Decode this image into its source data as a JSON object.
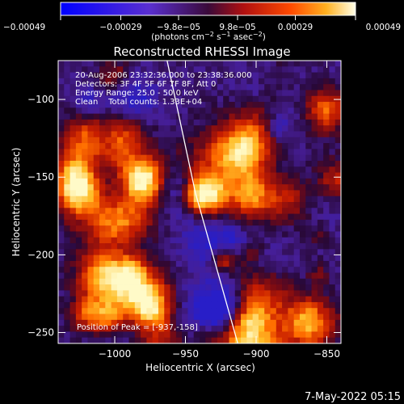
{
  "chart_data": {
    "type": "heatmap",
    "title": "Reconstructed RHESSI Image",
    "xlabel": "Heliocentric X (arcsec)",
    "ylabel": "Heliocentric Y (arcsec)",
    "xlim": [
      -1040,
      -840
    ],
    "ylim": [
      -257,
      -75
    ],
    "x_ticks": [
      -1000,
      -950,
      -900,
      -850
    ],
    "x_tick_labels": [
      "−1000",
      "−950",
      "−900",
      "−850"
    ],
    "y_ticks": [
      -100,
      -150,
      -200,
      -250
    ],
    "y_tick_labels": [
      "−100",
      "−150",
      "−200",
      "−250"
    ],
    "colorbar": {
      "min": -0.00049,
      "max": 0.00049,
      "ticks": [
        -0.00049,
        -0.00029,
        -9.8e-05,
        9.8e-05,
        0.00029,
        0.00049
      ],
      "tick_labels": [
        "−0.00049",
        "−0.00029",
        "−9.8e−05",
        "9.8e−05",
        "0.00029",
        "0.00049"
      ],
      "units_text": "(photons cm",
      "units_sup1": "−2",
      "units_mid1": " s",
      "units_sup2": "−1",
      "units_mid2": " asec",
      "units_sup3": "−2",
      "units_end": ")"
    },
    "info_lines": [
      "20-Aug-2006 23:32:36.000 to 23:38:36.000",
      "Detectors: 3F 4F 5F 6F 7F 8F, Att 0",
      "Energy Range: 25.0 - 50.0 keV",
      "Clean    Total counts: 1.33E+04"
    ],
    "peak_label": "Position of Peak = [-937,-158]",
    "peak_position": [
      -937,
      -158
    ],
    "limb_points": [
      [
        -963,
        -75
      ],
      [
        -943,
        -160
      ],
      [
        -913,
        -257
      ]
    ],
    "timestamp": "7-May-2022 05:15"
  }
}
